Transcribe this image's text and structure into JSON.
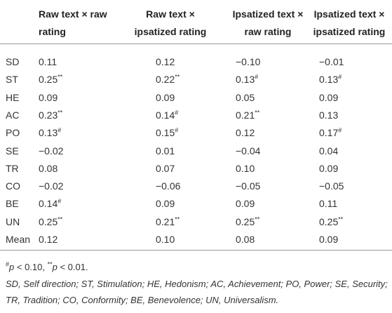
{
  "table": {
    "header": [
      "",
      "Raw text × raw rating",
      "Raw text × ipsatized rating",
      "Ipsatized text × raw rating",
      "Ipsatized text × ipsatized rating"
    ],
    "header_lines": [
      [
        "Raw text × raw",
        "rating"
      ],
      [
        "Raw text ×",
        "ipsatized rating"
      ],
      [
        "Ipsatized text ×",
        "raw rating"
      ],
      [
        "Ipsatized text ×",
        "ipsatized rating"
      ]
    ],
    "rows": [
      {
        "label": "SD",
        "cells": [
          {
            "text": "0.11"
          },
          {
            "text": "0.12"
          },
          {
            "text": "−0.10"
          },
          {
            "text": "−0.01"
          }
        ]
      },
      {
        "label": "ST",
        "cells": [
          {
            "text": "0.25",
            "sup": "**"
          },
          {
            "text": "0.22",
            "sup": "**"
          },
          {
            "text": "0.13",
            "sup": "#"
          },
          {
            "text": "0.13",
            "sup": "#"
          }
        ]
      },
      {
        "label": "HE",
        "cells": [
          {
            "text": "0.09"
          },
          {
            "text": "0.09"
          },
          {
            "text": "0.05"
          },
          {
            "text": "0.09"
          }
        ]
      },
      {
        "label": "AC",
        "cells": [
          {
            "text": "0.23",
            "sup": "**"
          },
          {
            "text": "0.14",
            "sup": "#"
          },
          {
            "text": "0.21",
            "sup": "**"
          },
          {
            "text": "0.13"
          }
        ]
      },
      {
        "label": "PO",
        "cells": [
          {
            "text": "0.13",
            "sup": "#"
          },
          {
            "text": "0.15",
            "sup": "#"
          },
          {
            "text": "0.12"
          },
          {
            "text": "0.17",
            "sup": "#"
          }
        ]
      },
      {
        "label": "SE",
        "cells": [
          {
            "text": "−0.02"
          },
          {
            "text": "0.01"
          },
          {
            "text": "−0.04"
          },
          {
            "text": "0.04"
          }
        ]
      },
      {
        "label": "TR",
        "cells": [
          {
            "text": "0.08"
          },
          {
            "text": "0.07"
          },
          {
            "text": "0.10"
          },
          {
            "text": "0.09"
          }
        ]
      },
      {
        "label": "CO",
        "cells": [
          {
            "text": "−0.02"
          },
          {
            "text": "−0.06"
          },
          {
            "text": "−0.05"
          },
          {
            "text": "−0.05"
          }
        ]
      },
      {
        "label": "BE",
        "cells": [
          {
            "text": "0.14",
            "sup": "#"
          },
          {
            "text": "0.09"
          },
          {
            "text": "0.09"
          },
          {
            "text": "0.11"
          }
        ]
      },
      {
        "label": "UN",
        "cells": [
          {
            "text": "0.25",
            "sup": "**"
          },
          {
            "text": "0.21",
            "sup": "**"
          },
          {
            "text": "0.25",
            "sup": "**"
          },
          {
            "text": "0.25",
            "sup": "**"
          }
        ]
      },
      {
        "label": "Mean",
        "cells": [
          {
            "text": "0.12"
          },
          {
            "text": "0.10"
          },
          {
            "text": "0.08"
          },
          {
            "text": "0.09"
          }
        ]
      }
    ]
  },
  "footnote": [
    {
      "sup": "#"
    },
    {
      "italic": "p"
    },
    {
      "text": " < 0.10, "
    },
    {
      "sup": "**"
    },
    {
      "italic": "p"
    },
    {
      "text": " < 0.01."
    }
  ],
  "abbreviations": "SD, Self direction; ST, Stimulation; HE, Hedonism; AC, Achievement; PO, Power; SE, Security; TR, Tradition; CO, Conformity; BE, Benevolence; UN, Universalism."
}
